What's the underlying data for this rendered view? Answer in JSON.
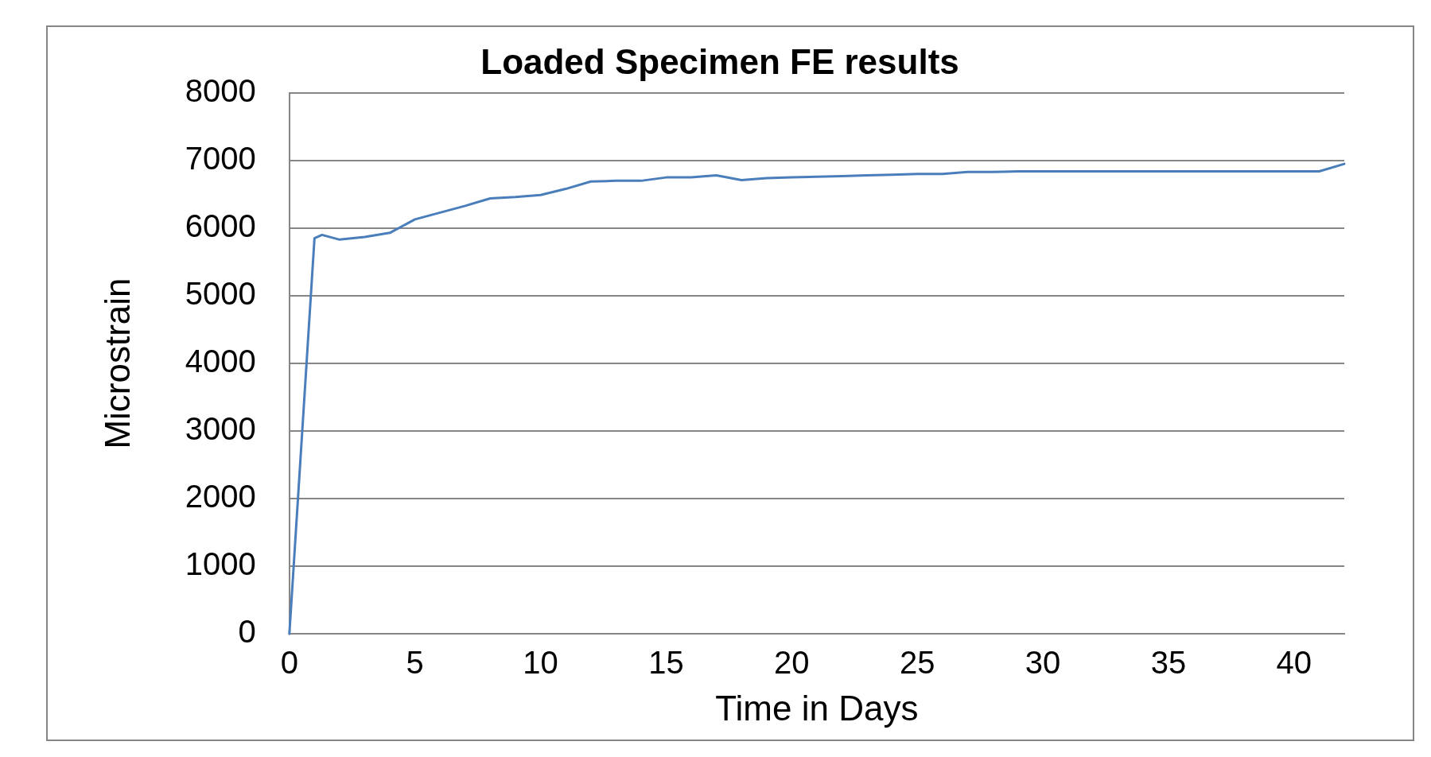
{
  "chart_data": {
    "type": "line",
    "title": "Loaded Specimen FE results",
    "xlabel": "Time in Days",
    "ylabel": "Microstrain",
    "x": [
      0,
      1,
      1.3,
      2,
      3,
      4,
      5,
      6,
      7,
      8,
      9,
      10,
      11,
      12,
      13,
      14,
      15,
      16,
      17,
      18,
      19,
      20,
      21,
      22,
      23,
      24,
      25,
      26,
      27,
      28,
      29,
      30,
      31,
      32,
      33,
      34,
      35,
      36,
      37,
      38,
      39,
      40,
      41,
      42
    ],
    "series": [
      {
        "color": "#4a7ebb",
        "values": [
          0,
          5850,
          5900,
          5830,
          5870,
          5930,
          6130,
          6230,
          6330,
          6440,
          6460,
          6490,
          6580,
          6690,
          6700,
          6700,
          6750,
          6750,
          6780,
          6710,
          6740,
          6750,
          6760,
          6770,
          6780,
          6790,
          6800,
          6800,
          6830,
          6830,
          6840,
          6840,
          6840,
          6840,
          6840,
          6840,
          6840,
          6840,
          6840,
          6840,
          6840,
          6840,
          6840,
          6950
        ]
      }
    ],
    "xlim": [
      0,
      42
    ],
    "xticks": [
      0,
      5,
      10,
      15,
      20,
      25,
      30,
      35,
      40
    ],
    "ylim": [
      0,
      8000
    ],
    "yticks": [
      0,
      1000,
      2000,
      3000,
      4000,
      5000,
      6000,
      7000,
      8000
    ],
    "grid": "y",
    "legend": false,
    "marker": "none",
    "line_style": "solid"
  }
}
